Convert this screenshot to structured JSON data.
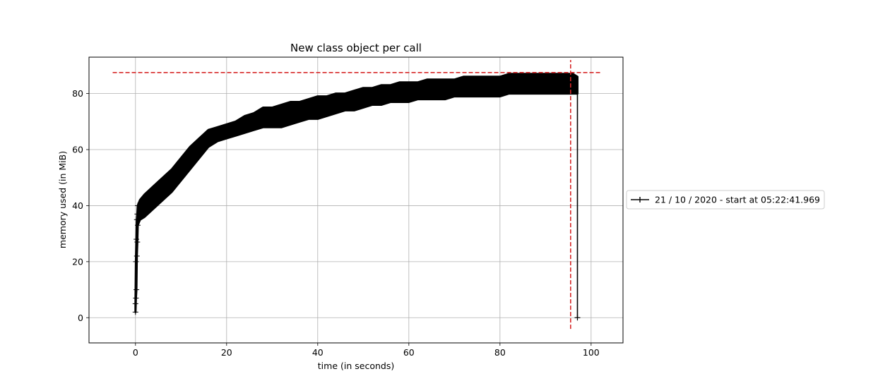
{
  "chart_data": {
    "type": "line",
    "title": "New class object per call",
    "xlabel": "time (in seconds)",
    "ylabel": "memory used (in MiB)",
    "xlim": [
      -10.2,
      107
    ],
    "ylim": [
      -9,
      93
    ],
    "xticks": [
      0,
      20,
      40,
      60,
      80,
      100
    ],
    "yticks": [
      0,
      20,
      40,
      60,
      80
    ],
    "grid": true,
    "legend_position": "right, outside plot",
    "series": [
      {
        "name": "21 / 10 / 2020 - start at 05:22:41.969",
        "color": "#000000",
        "marker": "+",
        "x": [
          0,
          0.1,
          0.2,
          0.3,
          0.4,
          0.5,
          1,
          2,
          4,
          6,
          8,
          10,
          12,
          14,
          16,
          18,
          20,
          22,
          24,
          26,
          28,
          30,
          32,
          34,
          36,
          38,
          40,
          42,
          44,
          46,
          48,
          50,
          52,
          54,
          56,
          58,
          60,
          62,
          64,
          66,
          68,
          70,
          72,
          74,
          76,
          78,
          80,
          82,
          84,
          86,
          88,
          90,
          92,
          94,
          96,
          97,
          97
        ],
        "y_low": [
          2,
          7,
          10,
          22,
          27,
          33,
          35,
          36,
          39,
          42,
          45,
          49,
          53,
          57,
          61,
          63,
          64,
          65,
          66,
          67,
          68,
          68,
          68,
          69,
          70,
          71,
          71,
          72,
          73,
          74,
          74,
          75,
          76,
          76,
          77,
          77,
          77,
          78,
          78,
          78,
          78,
          79,
          79,
          79,
          79,
          79,
          79,
          80,
          80,
          80,
          80,
          80,
          80,
          80,
          80,
          80,
          0
        ],
        "y_high": [
          5,
          20,
          28,
          35,
          37,
          40,
          42,
          44,
          47,
          50,
          53,
          57,
          61,
          64,
          67,
          68,
          69,
          70,
          72,
          73,
          75,
          75,
          76,
          77,
          77,
          78,
          79,
          79,
          80,
          80,
          81,
          82,
          82,
          83,
          83,
          84,
          84,
          84,
          85,
          85,
          85,
          85,
          86,
          86,
          86,
          86,
          86,
          87,
          87,
          87,
          87,
          87,
          87,
          87,
          87,
          86,
          0
        ]
      }
    ],
    "reference_lines": [
      {
        "orientation": "horizontal",
        "value": 87.5,
        "x_from": -5,
        "x_to": 102,
        "color": "#d62728",
        "style": "dashed"
      },
      {
        "orientation": "vertical",
        "value": 95.5,
        "y_from": -4,
        "y_to": 92,
        "color": "#d62728",
        "style": "dashed"
      }
    ]
  }
}
